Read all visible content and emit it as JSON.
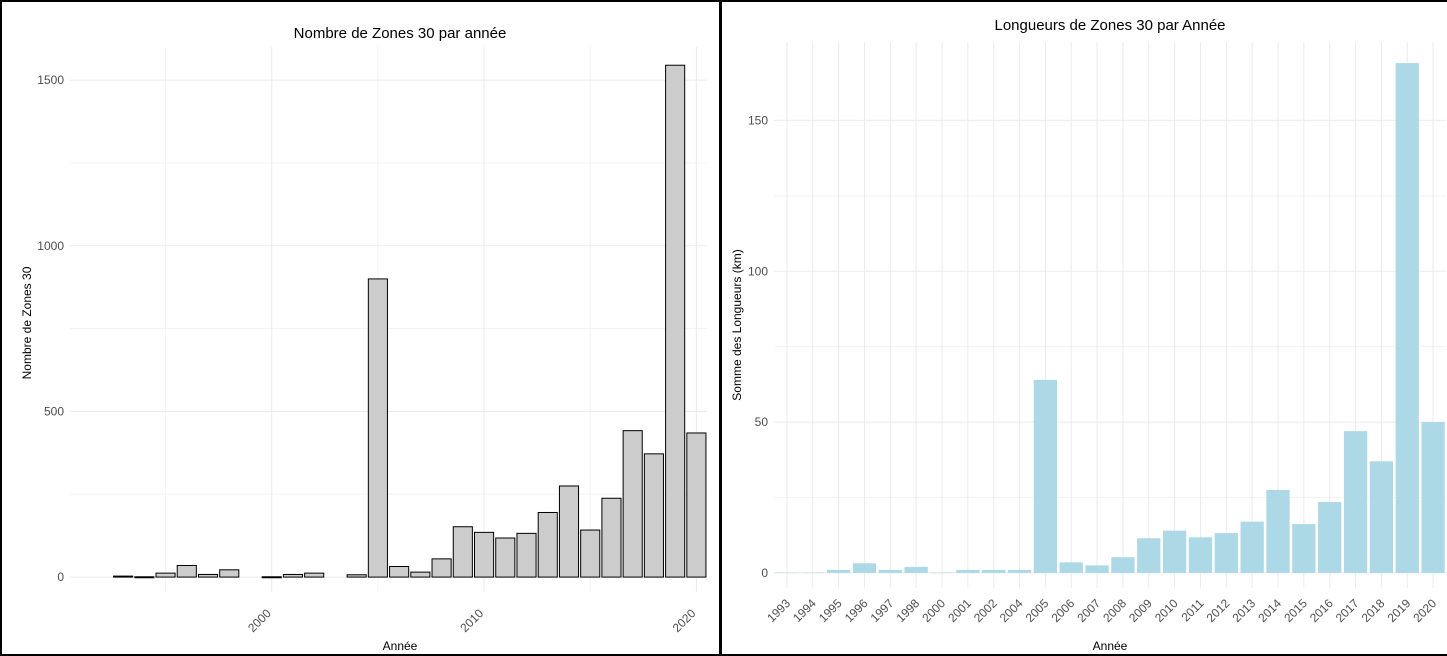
{
  "chart_data": [
    {
      "type": "bar",
      "title": "Nombre de Zones 30 par année",
      "xlabel": "Année",
      "ylabel": "Nombre de Zones 30",
      "x": [
        1993,
        1994,
        1995,
        1996,
        1997,
        1998,
        2000,
        2001,
        2002,
        2004,
        2005,
        2006,
        2007,
        2008,
        2009,
        2010,
        2011,
        2012,
        2013,
        2014,
        2015,
        2016,
        2017,
        2018,
        2019,
        2020
      ],
      "values": [
        3,
        1,
        12,
        35,
        8,
        22,
        1,
        8,
        12,
        7,
        900,
        32,
        15,
        55,
        152,
        135,
        118,
        132,
        195,
        275,
        142,
        238,
        442,
        372,
        1545,
        435
      ],
      "xlim": [
        1990.5,
        2020.5
      ],
      "xticks": [
        "2000",
        "2010",
        "2020"
      ],
      "xtick_values": [
        2000,
        2010,
        2020
      ],
      "ylim": [
        -45,
        1600
      ],
      "yticks": [
        "0",
        "500",
        "1000",
        "1500"
      ],
      "ytick_values": [
        0,
        500,
        1000,
        1500
      ],
      "bar_fill": "#cccccc",
      "bar_stroke": "#000000",
      "grid": true
    },
    {
      "type": "bar",
      "title": "Longueurs de Zones 30 par Année",
      "xlabel": "Année",
      "ylabel": "Somme des Longueurs (km)",
      "categories": [
        "1993",
        "1994",
        "1995",
        "1996",
        "1997",
        "1998",
        "2000",
        "2001",
        "2002",
        "2004",
        "2005",
        "2006",
        "2007",
        "2008",
        "2009",
        "2010",
        "2011",
        "2012",
        "2013",
        "2014",
        "2015",
        "2016",
        "2017",
        "2018",
        "2019",
        "2020"
      ],
      "values": [
        0.1,
        0.1,
        1,
        3.2,
        1,
        2,
        0.1,
        1,
        1,
        1,
        64,
        3.5,
        2.5,
        5.2,
        11.5,
        14,
        11.8,
        13.2,
        17,
        27.5,
        16.2,
        23.5,
        47,
        37,
        169,
        50
      ],
      "ylim": [
        -5,
        176
      ],
      "yticks": [
        "0",
        "50",
        "100",
        "150"
      ],
      "ytick_values": [
        0,
        50,
        100,
        150
      ],
      "bar_fill": "#add8e6",
      "grid": true
    }
  ]
}
